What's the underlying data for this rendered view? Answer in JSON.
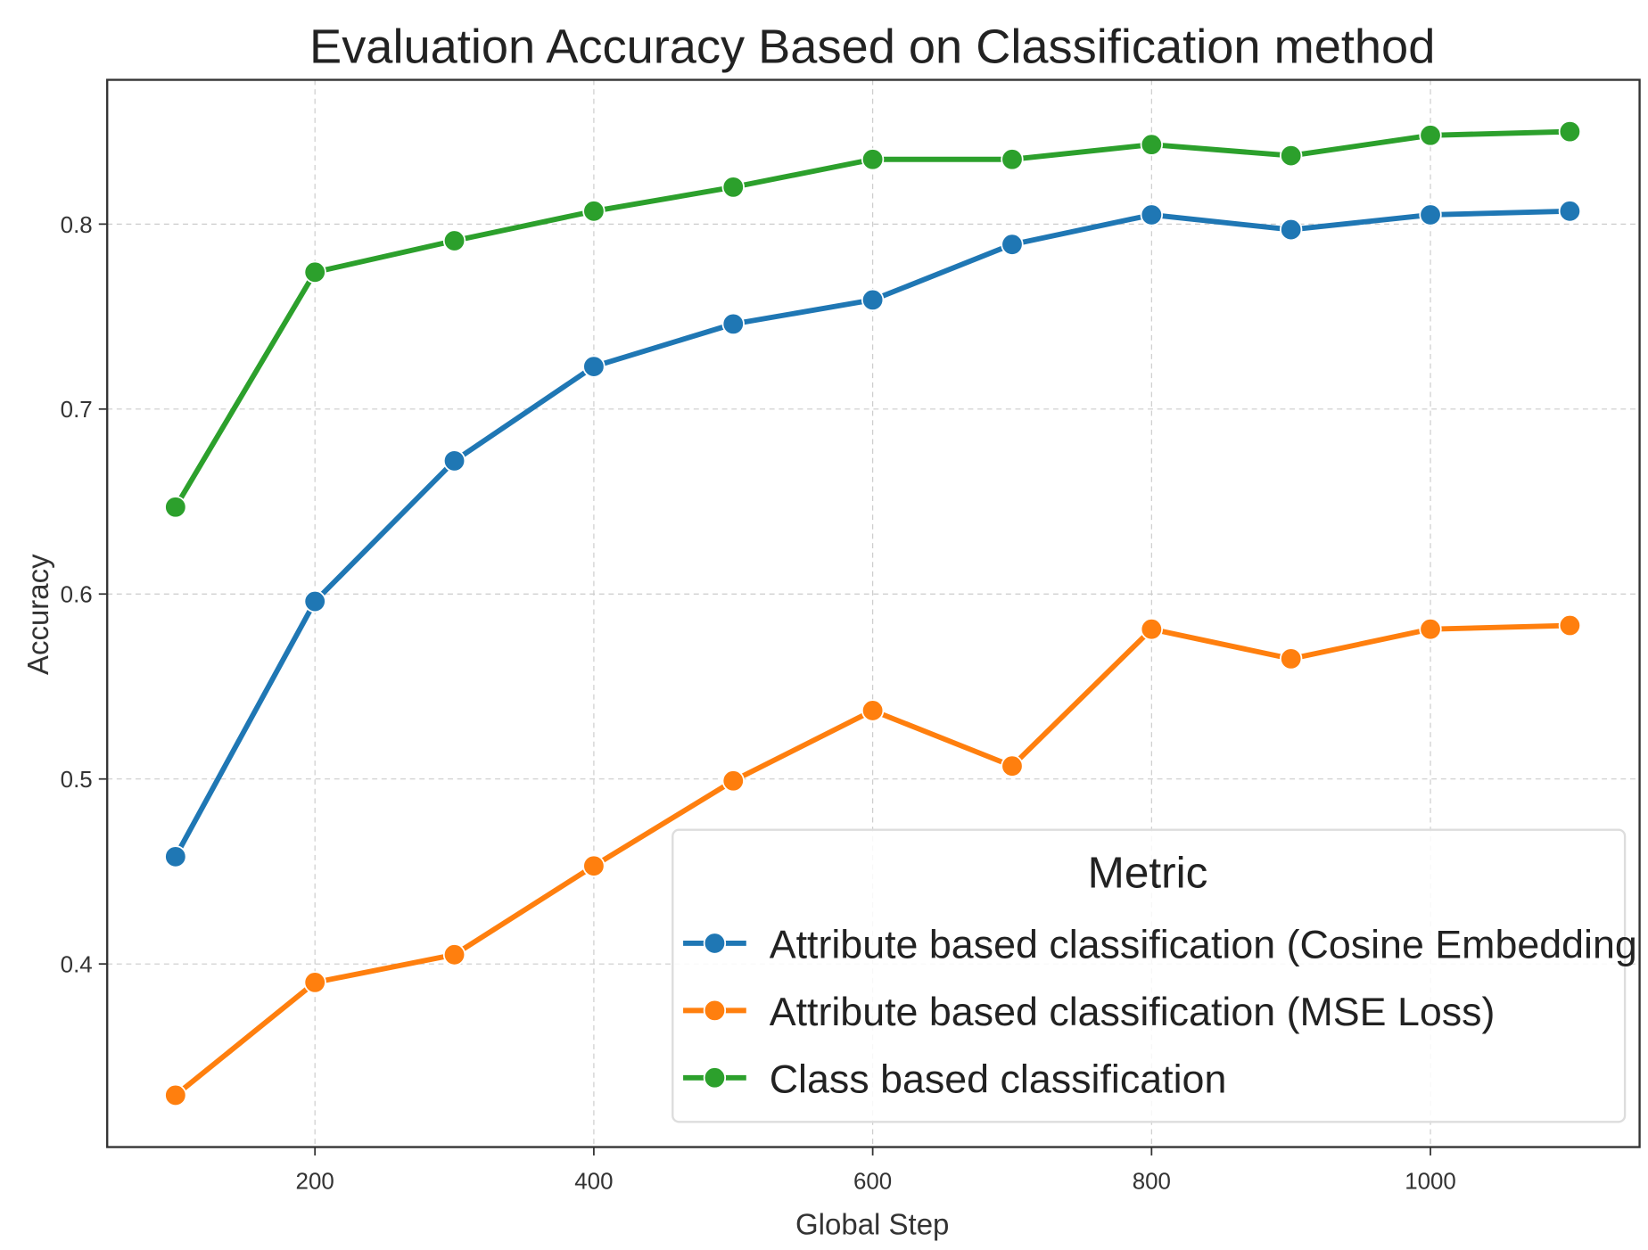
{
  "chart_data": {
    "type": "line",
    "title": "Evaluation Accuracy Based on Classification method",
    "xlabel": "Global Step",
    "ylabel": "Accuracy",
    "x": [
      100,
      200,
      300,
      400,
      500,
      600,
      700,
      800,
      900,
      1000,
      1100
    ],
    "xlim": [
      51,
      1150
    ],
    "ylim": [
      0.301,
      0.878
    ],
    "xticks": [
      200,
      400,
      600,
      800,
      1000
    ],
    "yticks": [
      0.4,
      0.5,
      0.6,
      0.7,
      0.8
    ],
    "xtick_labels": [
      "200",
      "400",
      "600",
      "800",
      "1000"
    ],
    "ytick_labels": [
      "0.4",
      "0.5",
      "0.6",
      "0.7",
      "0.8"
    ],
    "grid": true,
    "legend": {
      "title": "Metric",
      "placement": "lower-right"
    },
    "series": [
      {
        "name": "Attribute based classification (Cosine Embedding Loss)",
        "color": "#1f77b4",
        "values": [
          0.458,
          0.596,
          0.672,
          0.723,
          0.746,
          0.759,
          0.789,
          0.805,
          0.797,
          0.805,
          0.807
        ]
      },
      {
        "name": "Attribute based classification (MSE  Loss)",
        "color": "#ff7f0e",
        "values": [
          0.329,
          0.39,
          0.405,
          0.453,
          0.499,
          0.537,
          0.507,
          0.581,
          0.565,
          0.581,
          0.583
        ]
      },
      {
        "name": "Class based classification",
        "color": "#2ca02c",
        "values": [
          0.647,
          0.774,
          0.791,
          0.807,
          0.82,
          0.835,
          0.835,
          0.843,
          0.837,
          0.848,
          0.85
        ]
      }
    ]
  }
}
